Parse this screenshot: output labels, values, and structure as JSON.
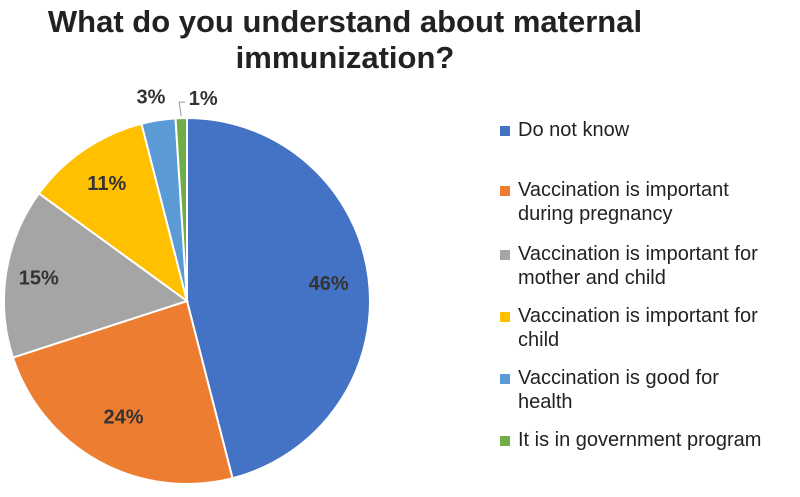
{
  "chart_data": {
    "type": "pie",
    "title_lines": [
      "What do you understand about maternal",
      "immunization?"
    ],
    "slices": [
      {
        "label": "Do not know",
        "value": 46,
        "display": "46%",
        "color": "#4472C4"
      },
      {
        "label": "Vaccination is important\nduring pregnancy",
        "value": 24,
        "display": "24%",
        "color": "#ED7D31"
      },
      {
        "label": "Vaccination is important for\nmother and child",
        "value": 15,
        "display": "15%",
        "color": "#A5A5A5"
      },
      {
        "label": "Vaccination is important for\nchild",
        "value": 11,
        "display": "11%",
        "color": "#FFC000"
      },
      {
        "label": "Vaccination is good for\nhealth",
        "value": 3,
        "display": "3%",
        "color": "#5B9BD5"
      },
      {
        "label": "It is in government program",
        "value": 1,
        "display": "1%",
        "color": "#70AD47"
      }
    ],
    "legend_position": "right"
  }
}
